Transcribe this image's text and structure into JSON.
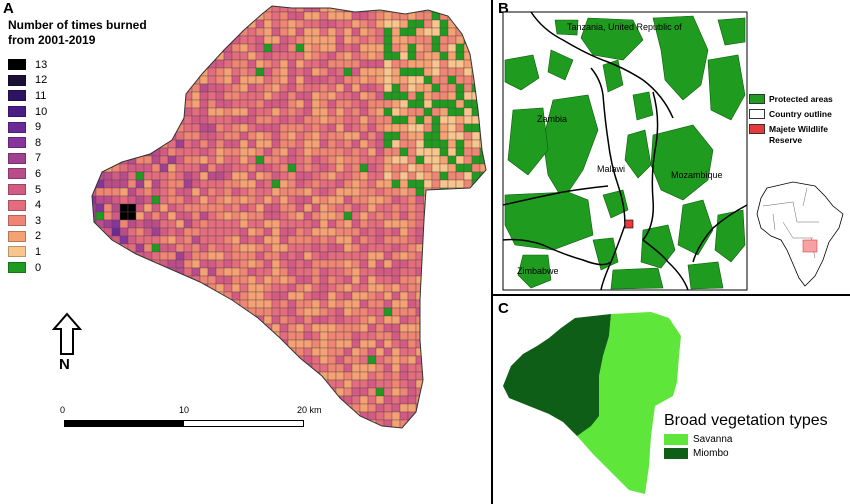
{
  "panel_a": {
    "label": "A",
    "legend_title": "Number of times burned from 2001-2019",
    "legend": [
      {
        "value": "13",
        "color": "#000000"
      },
      {
        "value": "12",
        "color": "#1b0f36"
      },
      {
        "value": "11",
        "color": "#2d1463"
      },
      {
        "value": "10",
        "color": "#4a1c86"
      },
      {
        "value": "9",
        "color": "#6a2b96"
      },
      {
        "value": "8",
        "color": "#86359c"
      },
      {
        "value": "7",
        "color": "#a0418f"
      },
      {
        "value": "6",
        "color": "#ba4c8a"
      },
      {
        "value": "5",
        "color": "#d35b82"
      },
      {
        "value": "4",
        "color": "#e36d7d"
      },
      {
        "value": "3",
        "color": "#ee8673"
      },
      {
        "value": "2",
        "color": "#f5a272"
      },
      {
        "value": "1",
        "color": "#f8c58c"
      },
      {
        "value": "0",
        "color": "#1f9c1f"
      }
    ],
    "north_label": "N",
    "scale_labels": [
      "0",
      "10",
      "20 km"
    ]
  },
  "panel_b": {
    "label": "B",
    "place_names": [
      "Tanzania, United Republic of",
      "Zambia",
      "Malawi",
      "Mozambique",
      "Zimbabwe"
    ],
    "legend": [
      {
        "label": "Protected areas",
        "color": "#1f9c1f"
      },
      {
        "label": "Country outline",
        "color": "#ffffff"
      },
      {
        "label": "Majete Wildlife Reserve",
        "color": "#e83a3a"
      }
    ]
  },
  "panel_c": {
    "label": "C",
    "legend_title": "Broad vegetation types",
    "legend": [
      {
        "label": "Savanna",
        "color": "#5ee63a"
      },
      {
        "label": "Miombo",
        "color": "#0e5e17"
      }
    ]
  }
}
